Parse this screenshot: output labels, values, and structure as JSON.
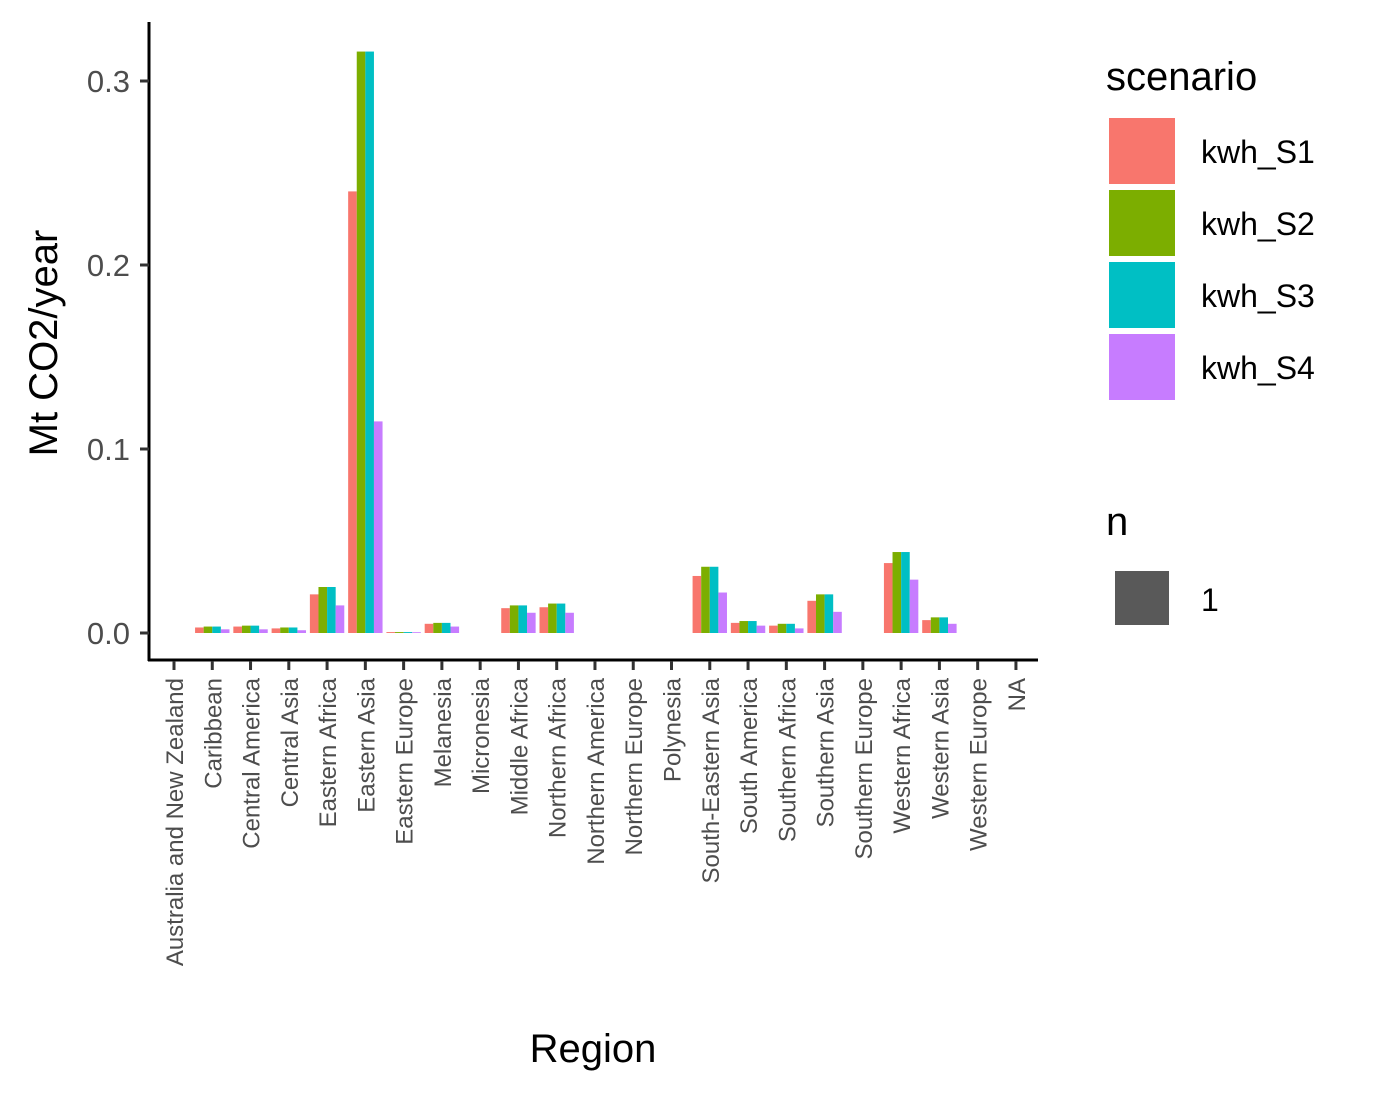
{
  "chart_data": {
    "type": "bar",
    "title": "",
    "xlabel": "Region",
    "ylabel": "Mt CO2/year",
    "ylim": [
      -0.015,
      0.33
    ],
    "yticks": [
      "0.0",
      "0.1",
      "0.2",
      "0.3"
    ],
    "grid": false,
    "legend_position": "right",
    "categories": [
      "Australia and New Zealand",
      "Caribbean",
      "Central America",
      "Central Asia",
      "Eastern Africa",
      "Eastern Asia",
      "Eastern Europe",
      "Melanesia",
      "Micronesia",
      "Middle Africa",
      "Northern Africa",
      "Northern America",
      "Northern Europe",
      "Polynesia",
      "South-Eastern Asia",
      "South America",
      "Southern Africa",
      "Southern Asia",
      "Southern Europe",
      "Western Africa",
      "Western Asia",
      "Western Europe",
      "NA"
    ],
    "series": [
      {
        "name": "kwh_S1",
        "color": "#F8766D",
        "values": [
          null,
          0.003,
          0.0035,
          0.0025,
          0.021,
          0.24,
          0.0005,
          0.005,
          null,
          0.0135,
          0.014,
          null,
          null,
          null,
          0.031,
          0.0055,
          0.004,
          0.0175,
          null,
          0.038,
          0.007,
          null,
          null
        ]
      },
      {
        "name": "kwh_S2",
        "color": "#7CAE00",
        "values": [
          null,
          0.0035,
          0.004,
          0.003,
          0.025,
          0.316,
          0.0005,
          0.0055,
          null,
          0.015,
          0.016,
          null,
          null,
          null,
          0.036,
          0.0065,
          0.005,
          0.021,
          null,
          0.044,
          0.0085,
          null,
          null
        ]
      },
      {
        "name": "kwh_S3",
        "color": "#00BFC4",
        "values": [
          null,
          0.0035,
          0.004,
          0.003,
          0.025,
          0.316,
          0.0005,
          0.0055,
          null,
          0.015,
          0.016,
          null,
          null,
          null,
          0.036,
          0.0065,
          0.005,
          0.021,
          null,
          0.044,
          0.0085,
          null,
          null
        ]
      },
      {
        "name": "kwh_S4",
        "color": "#C77CFF",
        "values": [
          null,
          0.002,
          0.002,
          0.0015,
          0.015,
          0.115,
          0.0003,
          0.0035,
          null,
          0.011,
          0.011,
          null,
          null,
          null,
          0.022,
          0.004,
          0.0025,
          0.0115,
          null,
          0.029,
          0.005,
          null,
          null
        ]
      }
    ],
    "legend": {
      "scenario_title": "scenario",
      "n_title": "n",
      "n_items": [
        {
          "label": "1",
          "color": "#595959"
        }
      ]
    }
  }
}
